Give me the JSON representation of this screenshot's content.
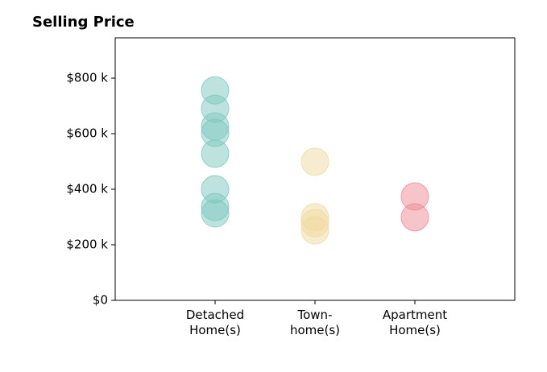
{
  "chart_data": {
    "type": "strip",
    "title": "Selling Price",
    "categories": [
      "Detached\nHome(s)",
      "Town-\nhome(s)",
      "Apartment\nHome(s)"
    ],
    "colors": [
      "#7ec8bd",
      "#f0d9a0",
      "#f08a95"
    ],
    "points": [
      [
        756,
        690,
        626,
        603,
        528,
        400,
        336,
        313
      ],
      [
        499,
        299,
        278,
        252
      ],
      [
        374,
        299
      ]
    ],
    "ylim": [
      0,
      945
    ],
    "yticks": [
      {
        "value": 0,
        "label": "$0"
      },
      {
        "value": 200,
        "label": "$200 k"
      },
      {
        "value": 400,
        "label": "$400 k"
      },
      {
        "value": 600,
        "label": "$600 k"
      },
      {
        "value": 800,
        "label": "$800 k"
      }
    ]
  }
}
